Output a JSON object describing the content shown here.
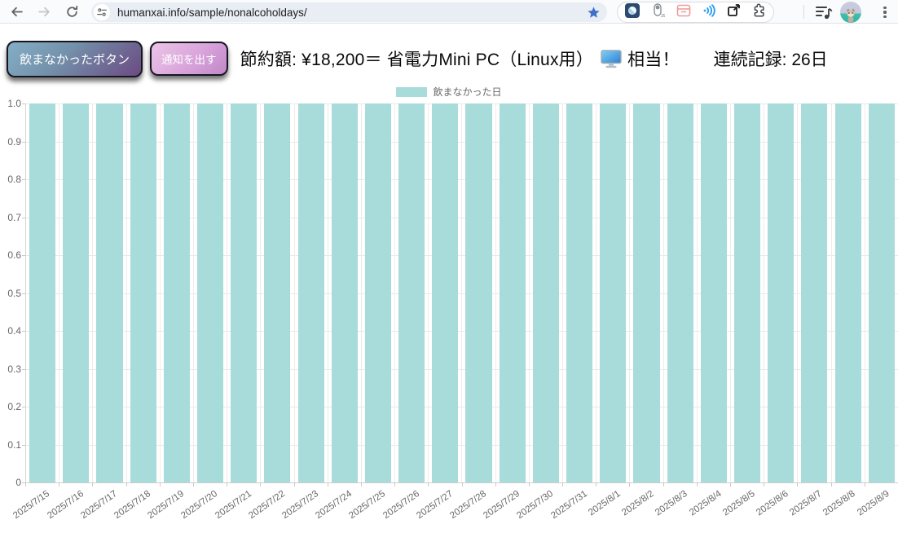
{
  "browser": {
    "url": "humanxai.info/sample/nonalcoholdays/",
    "bookmark_starred": true,
    "icons": [
      "back-arrow",
      "forward-arrow",
      "refresh",
      "site-settings-tune",
      "bookmark-star",
      "dark-reader-extension",
      "js-toggle-extension",
      "archive-extension",
      "signal-waves-extension",
      "export-extension",
      "extensions-puzzle",
      "media-controls",
      "profile-avatar",
      "three-dot-menu"
    ]
  },
  "page": {
    "buttons": {
      "record": "飲まなかったボタン",
      "notify": "通知を出す"
    },
    "savings_prefix": "節約額: ¥18,200＝ 省電力Mini PC（Linux用）",
    "savings_icon": "desktop-computer",
    "savings_suffix": "相当！",
    "streak": "連続記録: 26日"
  },
  "chart_data": {
    "type": "bar",
    "title": "",
    "legend_position": "top",
    "legend": [
      {
        "label": "飲まなかった日",
        "color": "#a7dcda"
      }
    ],
    "categories": [
      "2025/7/15",
      "2025/7/16",
      "2025/7/17",
      "2025/7/18",
      "2025/7/19",
      "2025/7/20",
      "2025/7/21",
      "2025/7/22",
      "2025/7/23",
      "2025/7/24",
      "2025/7/25",
      "2025/7/26",
      "2025/7/27",
      "2025/7/28",
      "2025/7/29",
      "2025/7/30",
      "2025/7/31",
      "2025/8/1",
      "2025/8/2",
      "2025/8/3",
      "2025/8/4",
      "2025/8/5",
      "2025/8/6",
      "2025/8/7",
      "2025/8/8",
      "2025/8/9"
    ],
    "series": [
      {
        "name": "飲まなかった日",
        "values": [
          1,
          1,
          1,
          1,
          1,
          1,
          1,
          1,
          1,
          1,
          1,
          1,
          1,
          1,
          1,
          1,
          1,
          1,
          1,
          1,
          1,
          1,
          1,
          1,
          1,
          1
        ]
      }
    ],
    "ylim": [
      0,
      1
    ],
    "ytick_labels": [
      "1.0",
      "0.9",
      "0.8",
      "0.7",
      "0.6",
      "0.5",
      "0.4",
      "0.3",
      "0.2",
      "0.1",
      "0"
    ],
    "grid": true,
    "bar_color": "#a7dcda",
    "grid_color": "#e9e9e9",
    "tick_label_color": "#666666"
  },
  "colors": {
    "button_record_gradient": [
      "#85aec6",
      "#6b4a82"
    ],
    "button_notify_gradient": [
      "#ecc4e7",
      "#c287ca"
    ],
    "bookmark_star": "#3f70c9",
    "toolbar_bg": "#fafbfd",
    "url_pill_bg": "#e9edf4"
  }
}
